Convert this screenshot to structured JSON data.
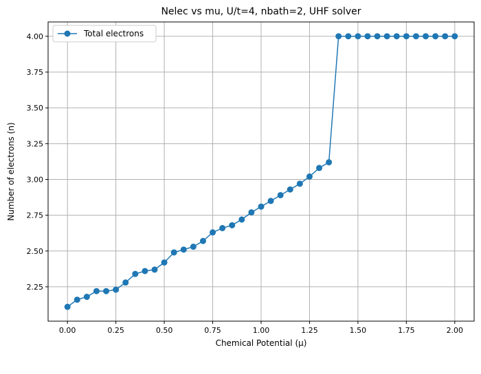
{
  "chart_data": {
    "type": "line",
    "title": "Nelec vs mu, U/t=4, nbath=2, UHF solver",
    "xlabel": "Chemical Potential (μ)",
    "ylabel": "Number of electrons (n)",
    "xlim": [
      -0.1,
      2.1
    ],
    "ylim": [
      2.01,
      4.1
    ],
    "grid": true,
    "legend_position": "top-left",
    "x_ticks": [
      0.0,
      0.25,
      0.5,
      0.75,
      1.0,
      1.25,
      1.5,
      1.75,
      2.0
    ],
    "x_tick_labels": [
      "0.00",
      "0.25",
      "0.50",
      "0.75",
      "1.00",
      "1.25",
      "1.50",
      "1.75",
      "2.00"
    ],
    "y_ticks": [
      2.25,
      2.5,
      2.75,
      3.0,
      3.25,
      3.5,
      3.75,
      4.0
    ],
    "y_tick_labels": [
      "2.25",
      "2.50",
      "2.75",
      "3.00",
      "3.25",
      "3.50",
      "3.75",
      "4.00"
    ],
    "series": [
      {
        "name": "Total electrons",
        "color": "#1f77b4",
        "marker": "circle",
        "x": [
          0.0,
          0.05,
          0.1,
          0.15,
          0.2,
          0.25,
          0.3,
          0.35,
          0.4,
          0.45,
          0.5,
          0.55,
          0.6,
          0.65,
          0.7,
          0.75,
          0.8,
          0.85,
          0.9,
          0.95,
          1.0,
          1.05,
          1.1,
          1.15,
          1.2,
          1.25,
          1.3,
          1.35,
          1.4,
          1.45,
          1.5,
          1.55,
          1.6,
          1.65,
          1.7,
          1.75,
          1.8,
          1.85,
          1.9,
          1.95,
          2.0
        ],
        "y": [
          2.11,
          2.16,
          2.18,
          2.22,
          2.22,
          2.23,
          2.28,
          2.34,
          2.36,
          2.37,
          2.42,
          2.49,
          2.51,
          2.53,
          2.57,
          2.63,
          2.66,
          2.68,
          2.72,
          2.77,
          2.81,
          2.85,
          2.89,
          2.93,
          2.97,
          3.02,
          3.08,
          3.12,
          4.0,
          4.0,
          4.0,
          4.0,
          4.0,
          4.0,
          4.0,
          4.0,
          4.0,
          4.0,
          4.0,
          4.0,
          4.0
        ]
      }
    ]
  }
}
